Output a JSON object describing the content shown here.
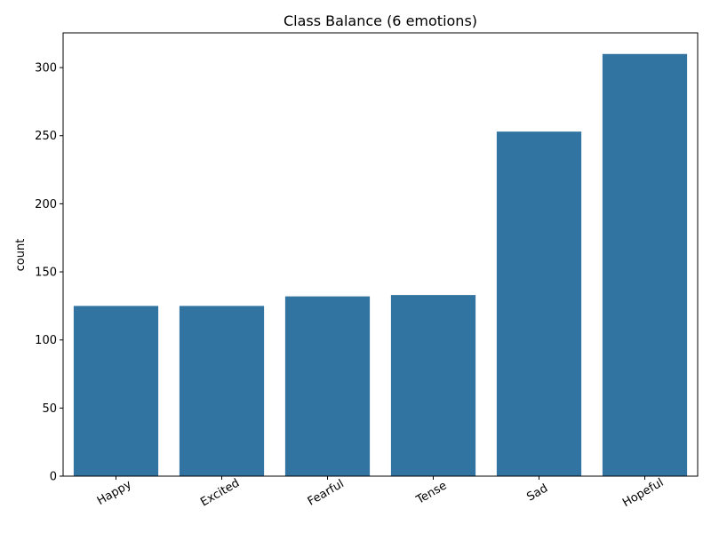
{
  "chart_data": {
    "type": "bar",
    "title": "Class Balance (6 emotions)",
    "xlabel": "",
    "ylabel": "count",
    "categories": [
      "Happy",
      "Excited",
      "Fearful",
      "Tense",
      "Sad",
      "Hopeful"
    ],
    "values": [
      125,
      125,
      132,
      133,
      253,
      310
    ],
    "ylim": [
      0,
      325.5
    ],
    "yticks": [
      0,
      50,
      100,
      150,
      200,
      250,
      300
    ],
    "bar_color": "#3274a1",
    "grid": false,
    "legend": "none"
  }
}
